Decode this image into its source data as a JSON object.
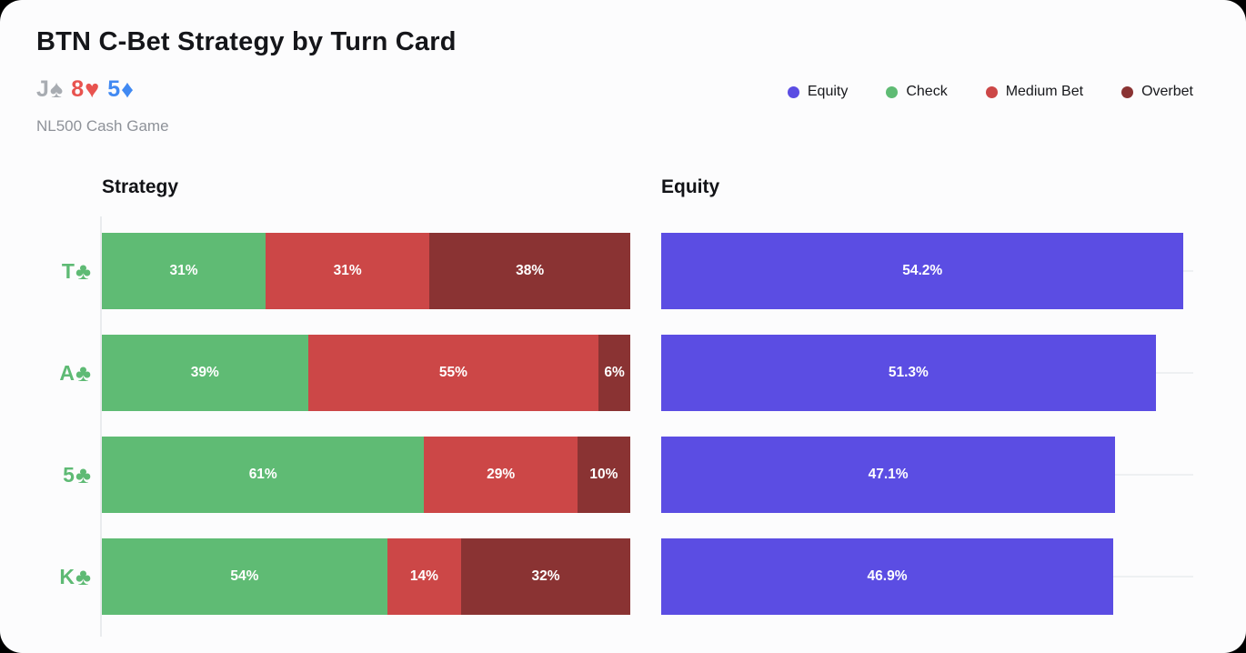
{
  "card": {
    "title": "BTN C-Bet Strategy by Turn Card",
    "subtitle": "NL500 Cash Game",
    "board": [
      {
        "rank": "J",
        "suit": "spade",
        "suit_glyph": "♠",
        "color": "#a8acb2"
      },
      {
        "rank": "8",
        "suit": "heart",
        "suit_glyph": "♥",
        "color": "#e8534f"
      },
      {
        "rank": "5",
        "suit": "diamond",
        "suit_glyph": "♦",
        "color": "#4189f2"
      }
    ]
  },
  "legend": [
    {
      "label": "Equity",
      "color": "#5b4de3"
    },
    {
      "label": "Check",
      "color": "#5fbb74"
    },
    {
      "label": "Medium Bet",
      "color": "#cc4747"
    },
    {
      "label": "Overbet",
      "color": "#8a3333"
    }
  ],
  "chart_data": [
    {
      "type": "bar",
      "title": "Strategy",
      "orientation": "horizontal",
      "stacked": true,
      "categories": [
        "T♣",
        "A♣",
        "5♣",
        "K♣"
      ],
      "category_color": "#5eba74",
      "series": [
        {
          "name": "Check",
          "color": "#5fbb74",
          "values": [
            31,
            39,
            61,
            54
          ]
        },
        {
          "name": "Medium Bet",
          "color": "#cc4747",
          "values": [
            31,
            55,
            29,
            14
          ]
        },
        {
          "name": "Overbet",
          "color": "#8a3333",
          "values": [
            38,
            6,
            10,
            32
          ]
        }
      ],
      "xlim": [
        0,
        100
      ],
      "value_suffix": "%",
      "grid": false,
      "legend_position": "top-right"
    },
    {
      "type": "bar",
      "title": "Equity",
      "orientation": "horizontal",
      "stacked": false,
      "categories": [
        "T♣",
        "A♣",
        "5♣",
        "K♣"
      ],
      "series": [
        {
          "name": "Equity",
          "color": "#5b4de3",
          "values": [
            54.2,
            51.3,
            47.1,
            46.9
          ]
        }
      ],
      "xlim": [
        0,
        55.2
      ],
      "value_suffix": "%",
      "grid": true,
      "legend_position": "top-right"
    }
  ]
}
